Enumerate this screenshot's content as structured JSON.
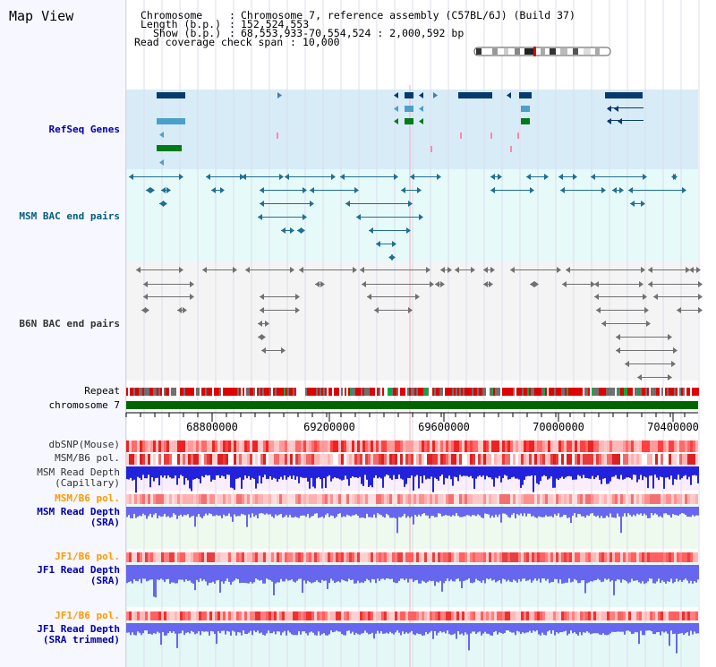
{
  "header": {
    "title": "Map View",
    "chromosome_label": "Chromosome",
    "chromosome_value": "Chromosome 7, reference assembly (C57BL/6J) (Build 37)",
    "length_label": "Length (b.p.)",
    "length_value": "152,524,553",
    "show_label": "Show (b.p.)",
    "show_value": "68,553,933-70,554,524 : 2,000,592 bp",
    "coverage_label": "Read coverage check span",
    "coverage_value": "10,000"
  },
  "tracks": {
    "refseq": "RefSeq Genes",
    "msm_bac": "MSM BAC end pairs",
    "b6n_bac": "B6N BAC end pairs",
    "repeat": "Repeat",
    "chromosome": "chromosome 7",
    "dbsnp": "dbSNP(Mouse)",
    "msm_b6_pol_1": "MSM/B6 pol.",
    "msm_read_depth_cap_1": "MSM Read Depth",
    "msm_read_depth_cap_2": "(Capillary)",
    "msm_b6_pol_2": "MSM/B6 pol.",
    "msm_read_depth_sra_1": "MSM Read Depth",
    "msm_read_depth_sra_2": "(SRA)",
    "jf1_b6_pol_1": "JF1/B6 pol.",
    "jf1_read_depth_1": "JF1 Read Depth",
    "jf1_read_depth_2": "(SRA)",
    "jf1_b6_pol_2": "JF1/B6 pol.",
    "jf1_trim_1": "JF1 Read Depth",
    "jf1_trim_2": "(SRA trimmed)"
  },
  "axis": {
    "ticks": [
      "68800000",
      "69200000",
      "69600000",
      "70000000",
      "70400000"
    ]
  },
  "colors": {
    "label_blue": "#0000aa",
    "label_teal": "#005f7f",
    "label_orange": "#ff9900",
    "label_gray": "#333333",
    "refseq_bg": "#d8ecf8",
    "bac_bg": "#e6fafa",
    "read_depth_blue": "#2222dd",
    "sra_blue": "#6666ee",
    "chromosome_green": "#006600"
  }
}
